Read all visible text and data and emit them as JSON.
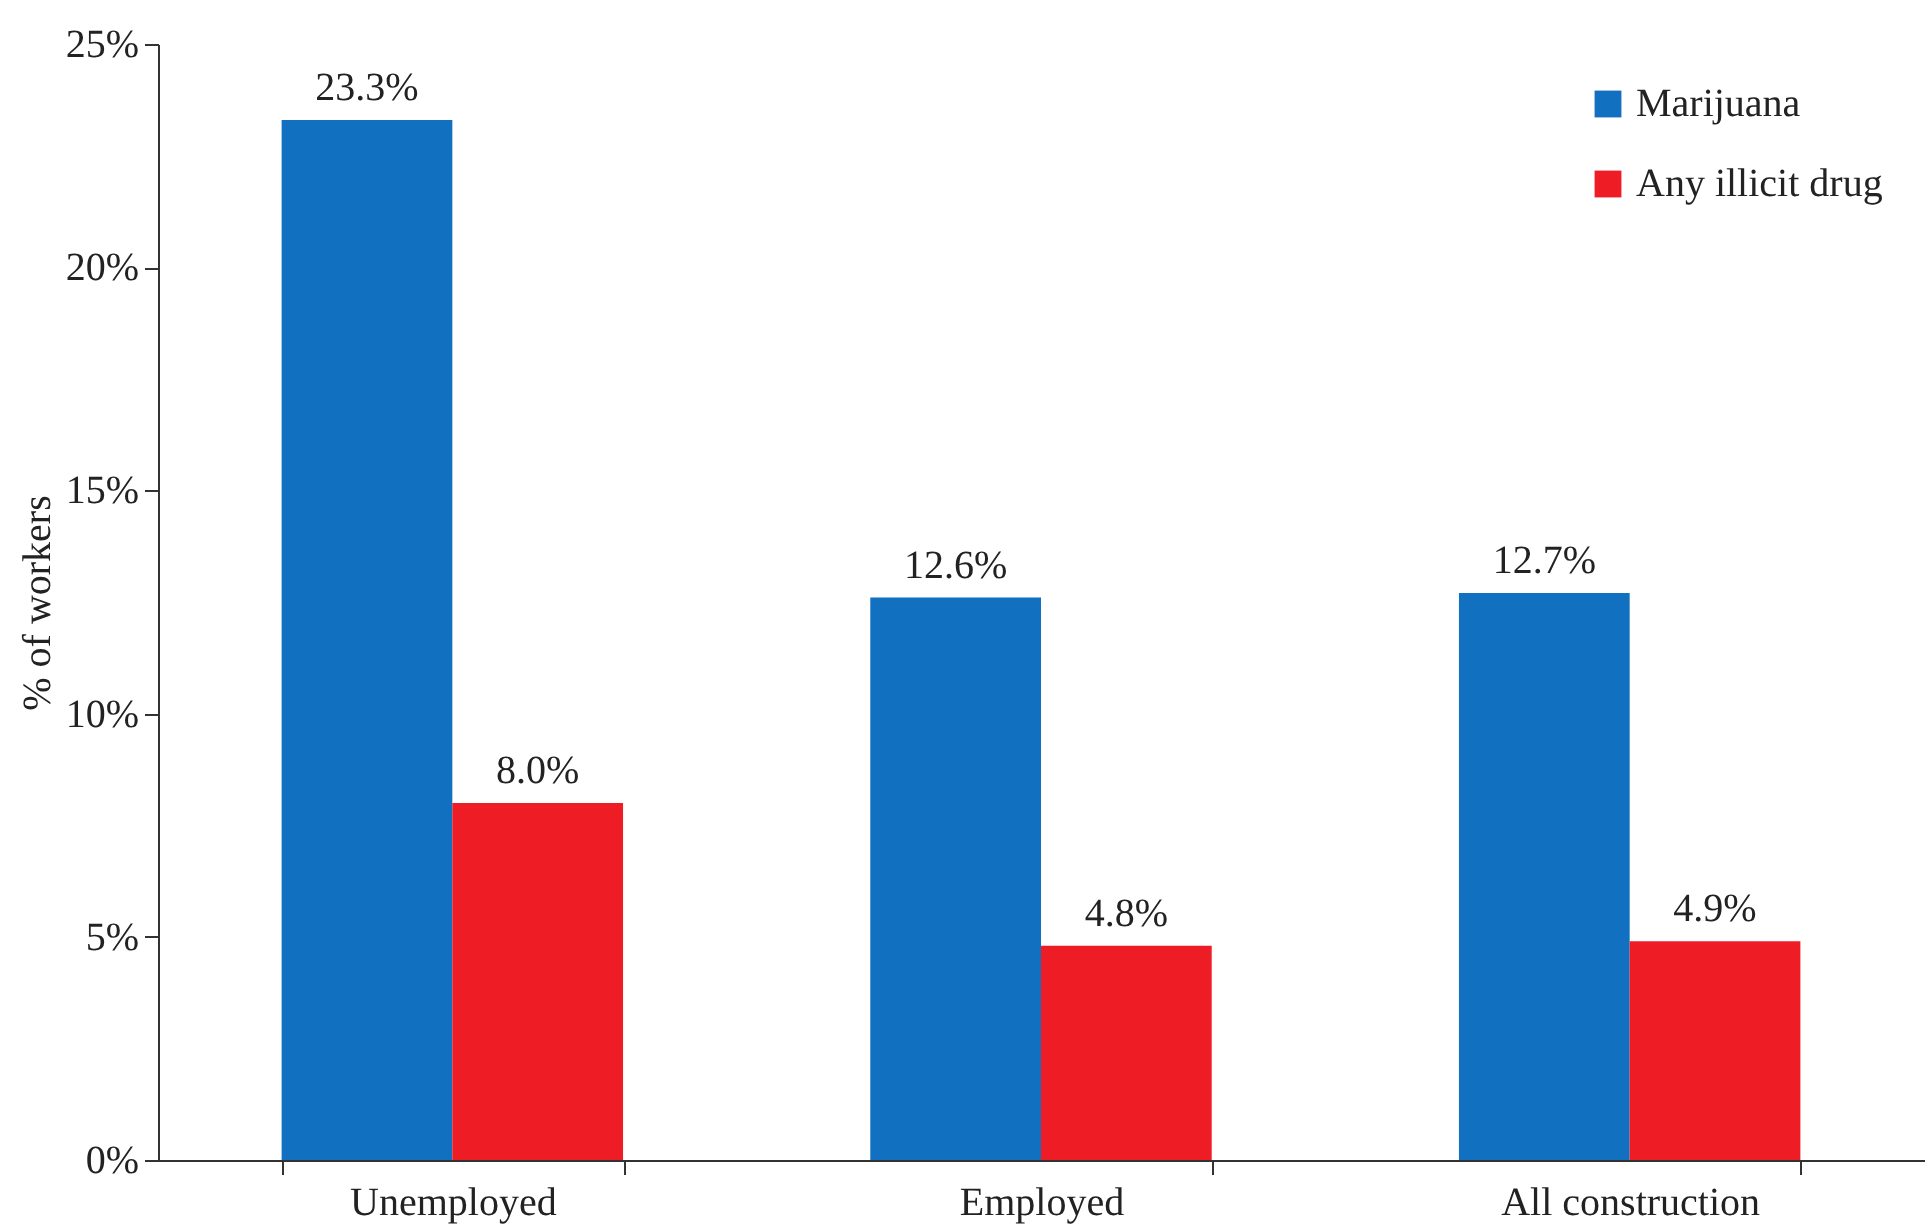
{
  "chart_data": {
    "type": "bar",
    "ylabel": "% of workers",
    "categories": [
      "Unemployed",
      "Employed",
      "All construction"
    ],
    "series": [
      {
        "name": "Marijuana",
        "color": "#1170c0",
        "values": [
          23.3,
          12.6,
          12.7
        ],
        "value_labels": [
          "23.3%",
          "12.6%",
          "12.7%"
        ]
      },
      {
        "name": "Any illicit drug",
        "color": "#ee1c25",
        "values": [
          8.0,
          4.8,
          4.9
        ],
        "value_labels": [
          "8.0%",
          "4.8%",
          "4.9%"
        ]
      }
    ],
    "ylim": [
      0,
      25
    ],
    "yticks": [
      {
        "value": 0,
        "label": "0%"
      },
      {
        "value": 5,
        "label": "5%"
      },
      {
        "value": 10,
        "label": "10%"
      },
      {
        "value": 15,
        "label": "15%"
      },
      {
        "value": 20,
        "label": "20%"
      },
      {
        "value": 25,
        "label": "25%"
      }
    ],
    "grid": false,
    "legend": "top right"
  }
}
